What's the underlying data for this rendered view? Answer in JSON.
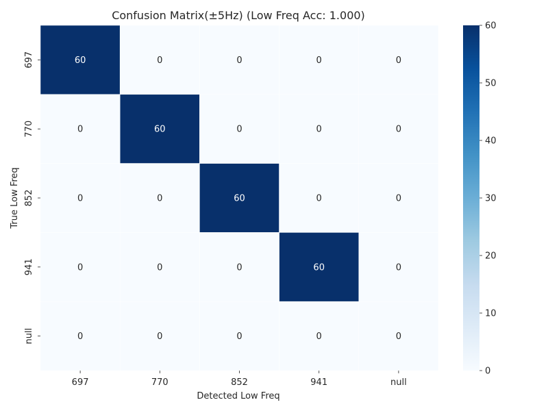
{
  "chart_data": {
    "type": "heatmap",
    "title": "Confusion Matrix(±5Hz) (Low Freq Acc: 1.000)",
    "xlabel": "Detected Low Freq",
    "ylabel": "True Low Freq",
    "x_categories": [
      "697",
      "770",
      "852",
      "941",
      "null"
    ],
    "y_categories": [
      "697",
      "770",
      "852",
      "941",
      "null"
    ],
    "values": [
      [
        60,
        0,
        0,
        0,
        0
      ],
      [
        0,
        60,
        0,
        0,
        0
      ],
      [
        0,
        0,
        60,
        0,
        0
      ],
      [
        0,
        0,
        0,
        60,
        0
      ],
      [
        0,
        0,
        0,
        0,
        0
      ]
    ],
    "annotations": true,
    "colormap": "Blues",
    "vmin": 0,
    "vmax": 60,
    "colorbar": {
      "ticks": [
        0,
        10,
        20,
        30,
        40,
        50,
        60
      ]
    },
    "cell_border_color": "#ffffff",
    "low_color": "#f7fbff",
    "high_color": "#08306b",
    "text_on_dark": "#ffffff",
    "text_on_light": "#262626",
    "grid": false
  }
}
